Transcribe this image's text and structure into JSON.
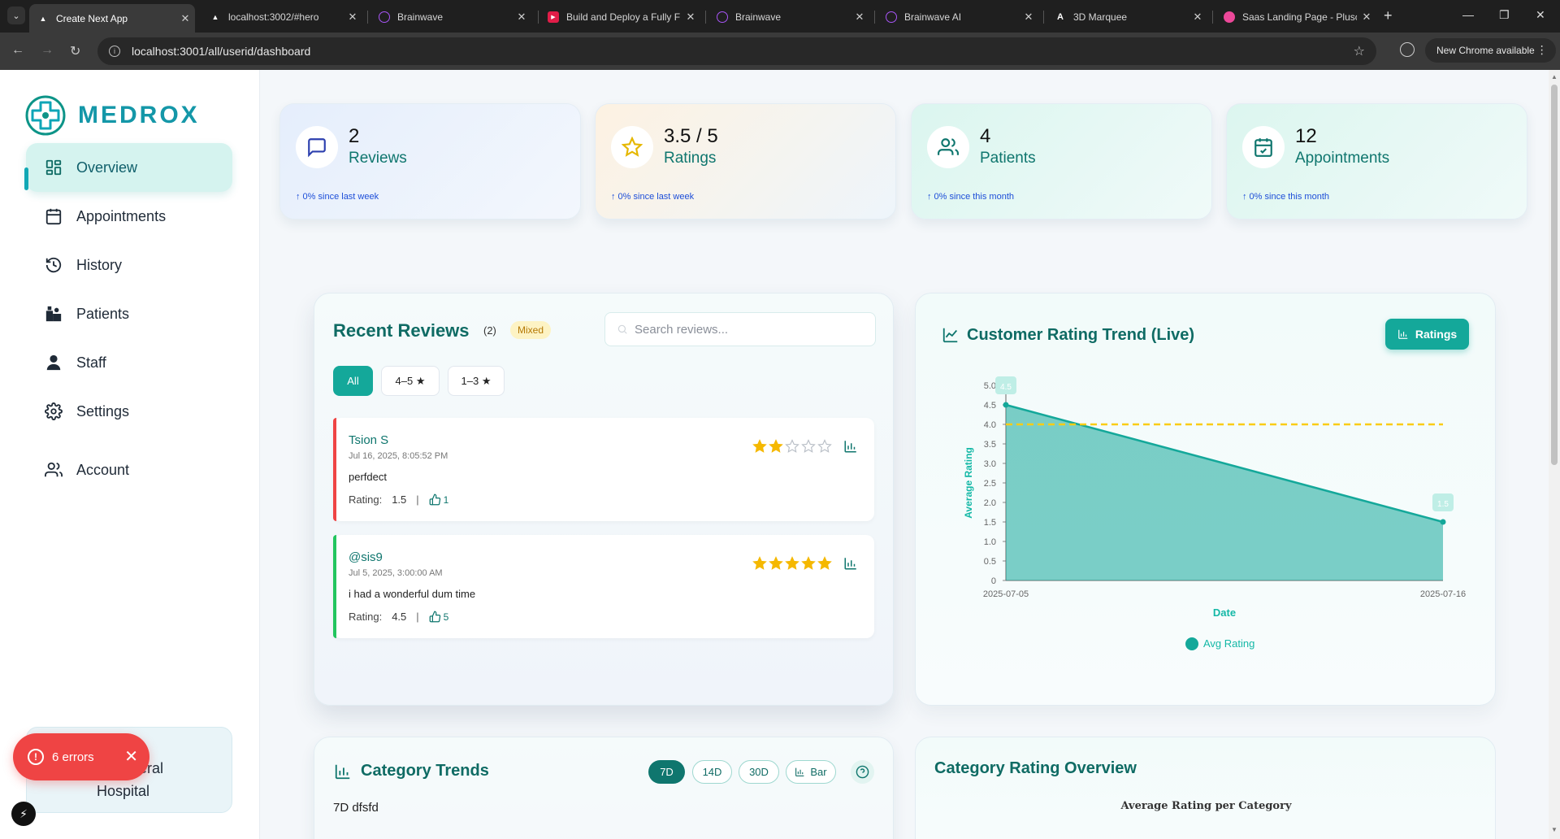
{
  "browser": {
    "tabs": [
      {
        "title": "Create Next App",
        "icon": "vercel-triangle-icon",
        "active": true
      },
      {
        "title": "localhost:3002/#hero",
        "icon": "vercel-triangle-icon",
        "active": false
      },
      {
        "title": "Brainwave",
        "icon": "brainwave-icon",
        "active": false
      },
      {
        "title": "Build and Deploy a Fully F",
        "icon": "youtube-icon",
        "active": false
      },
      {
        "title": "Brainwave",
        "icon": "brainwave-icon",
        "active": false
      },
      {
        "title": "Brainwave AI",
        "icon": "brainwave-icon",
        "active": false
      },
      {
        "title": "3D Marquee",
        "icon": "aceternity-icon",
        "active": false
      },
      {
        "title": "Saas Landing Page - Plusc",
        "icon": "saas-icon",
        "active": false
      }
    ],
    "url": "localhost:3001/all/userid/dashboard",
    "update_label": "New Chrome available"
  },
  "sidebar": {
    "brand": "MEDROX",
    "items": [
      {
        "label": "Overview",
        "icon": "grid-icon",
        "active": true
      },
      {
        "label": "Appointments",
        "icon": "calendar-icon",
        "active": false
      },
      {
        "label": "History",
        "icon": "history-icon",
        "active": false
      },
      {
        "label": "Patients",
        "icon": "patients-icon",
        "active": false
      },
      {
        "label": "Staff",
        "icon": "staff-icon",
        "active": false
      },
      {
        "label": "Settings",
        "icon": "gear-icon",
        "active": false
      },
      {
        "label": "Account",
        "icon": "users-icon",
        "active": false
      }
    ],
    "hospital_line1": "neral",
    "hospital_line2": "Hospital"
  },
  "errors": {
    "label": "6 errors"
  },
  "stats": [
    {
      "value": "2",
      "caption": "Reviews",
      "since": "↑ 0% since last week",
      "icon": "message-icon",
      "accent": "#2c3fae"
    },
    {
      "value": "3.5 / 5",
      "caption": "Ratings",
      "since": "↑ 0% since last week",
      "icon": "star-icon",
      "accent": "#e5b700"
    },
    {
      "value": "4",
      "caption": "Patients",
      "since": "↑ 0% since this month",
      "icon": "users-icon",
      "accent": "#0f766e"
    },
    {
      "value": "12",
      "caption": "Appointments",
      "since": "↑ 0% since this month",
      "icon": "calendar-check-icon",
      "accent": "#0f766e"
    }
  ],
  "reviews": {
    "title": "Recent Reviews",
    "count": "(2)",
    "badge": "Mixed",
    "search_placeholder": "Search reviews...",
    "filters": [
      "All",
      "4–5 ★",
      "1–3 ★"
    ],
    "rating_label": "Rating:",
    "items": [
      {
        "name": "Tsion S",
        "date": "Jul 16, 2025, 8:05:52 PM",
        "text": "perfdect",
        "rating": "1.5",
        "stars": 2,
        "likes": "1",
        "accent": "#ef4444"
      },
      {
        "name": "@sis9",
        "date": "Jul 5, 2025, 3:00:00 AM",
        "text": "i had a wonderful dum time",
        "rating": "4.5",
        "stars": 5,
        "likes": "5",
        "accent": "#22c55e"
      }
    ]
  },
  "trend": {
    "title": "Customer Rating Trend (Live)",
    "button": "Ratings"
  },
  "chart_data": {
    "type": "area",
    "title": "",
    "xlabel": "Date",
    "ylabel": "Average Rating",
    "x": [
      "2025-07-05",
      "2025-07-16"
    ],
    "series": [
      {
        "name": "Avg Rating",
        "values": [
          4.5,
          1.5
        ],
        "color": "#14a89a"
      }
    ],
    "reference_line": {
      "value": 4.0,
      "color": "#facc15",
      "style": "dashed"
    },
    "point_labels": [
      "4.5",
      "1.5"
    ],
    "yticks": [
      "0",
      "0.5",
      "1.0",
      "1.5",
      "2.0",
      "2.5",
      "3.0",
      "3.5",
      "4.0",
      "4.5",
      "5.0"
    ],
    "ylim": [
      0,
      5
    ],
    "grid": false,
    "legend": "bottom"
  },
  "category_trends": {
    "title": "Category Trends",
    "pills": [
      "7D",
      "14D",
      "30D",
      "Bar"
    ],
    "subtitle": "7D dfsfd"
  },
  "category_overview": {
    "title": "Category Rating Overview",
    "subtitle": "Average Rating per Category"
  }
}
